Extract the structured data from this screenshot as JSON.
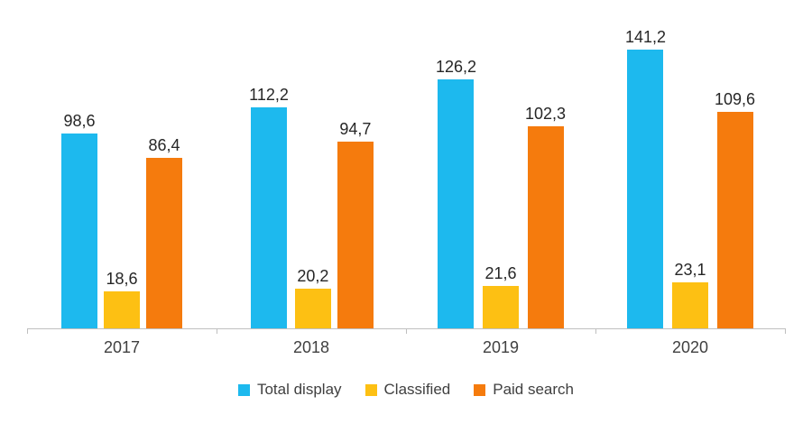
{
  "chart_data": {
    "type": "bar",
    "title": "",
    "xlabel": "",
    "ylabel": "",
    "categories": [
      "2017",
      "2018",
      "2019",
      "2020"
    ],
    "series": [
      {
        "name": "Total display",
        "color": "#1db9ee",
        "values": [
          98.6,
          112.2,
          126.2,
          141.2
        ],
        "labels": [
          "98,6",
          "112,2",
          "126,2",
          "141,2"
        ]
      },
      {
        "name": "Classified",
        "color": "#fdc013",
        "values": [
          18.6,
          20.2,
          21.6,
          23.1
        ],
        "labels": [
          "18,6",
          "20,2",
          "21,6",
          "23,1"
        ]
      },
      {
        "name": "Paid search",
        "color": "#f57b0d",
        "values": [
          86.4,
          94.7,
          102.3,
          109.6
        ],
        "labels": [
          "86,4",
          "94,7",
          "102,3",
          "109,6"
        ]
      }
    ],
    "ylim": [
      0,
      160
    ],
    "grid": false,
    "y_axis_visible": false,
    "legend_position": "bottom",
    "axis_color": "#bfbfbf",
    "label_color": "#262626",
    "decimal_separator": ","
  }
}
